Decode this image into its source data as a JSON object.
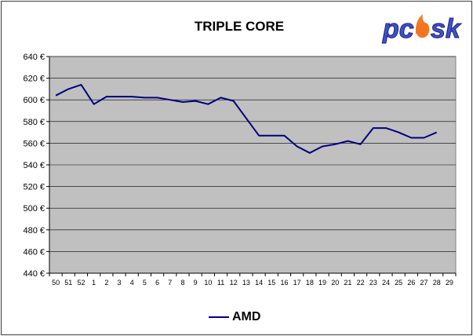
{
  "logo_text": "pcsk",
  "colors": {
    "plot_bg": "#c0c0c0",
    "line": "#000080",
    "grid": "#000000",
    "logo_blue": "#3f51c8",
    "logo_flame": "#f06a1c"
  },
  "chart_data": {
    "type": "line",
    "title": "TRIPLE CORE",
    "categories": [
      "50",
      "51",
      "52",
      "1",
      "2",
      "3",
      "4",
      "5",
      "6",
      "7",
      "8",
      "9",
      "10",
      "11",
      "12",
      "13",
      "14",
      "15",
      "16",
      "17",
      "18",
      "19",
      "20",
      "21",
      "22",
      "23",
      "24",
      "25",
      "26",
      "27",
      "28",
      "29"
    ],
    "series": [
      {
        "name": "AMD",
        "values": [
          604,
          610,
          614,
          596,
          603,
          603,
          603,
          602,
          602,
          600,
          598,
          599,
          596,
          602,
          599,
          583,
          567,
          567,
          567,
          557,
          551,
          557,
          559,
          562,
          559,
          574,
          574,
          570,
          565,
          565,
          570,
          null
        ]
      }
    ],
    "ylim": [
      440,
      640
    ],
    "yticks": [
      "440 €",
      "460 €",
      "480 €",
      "500 €",
      "520 €",
      "540 €",
      "560 €",
      "580 €",
      "600 €",
      "620 €",
      "640 €"
    ],
    "grid": true,
    "legend": "bottom"
  }
}
